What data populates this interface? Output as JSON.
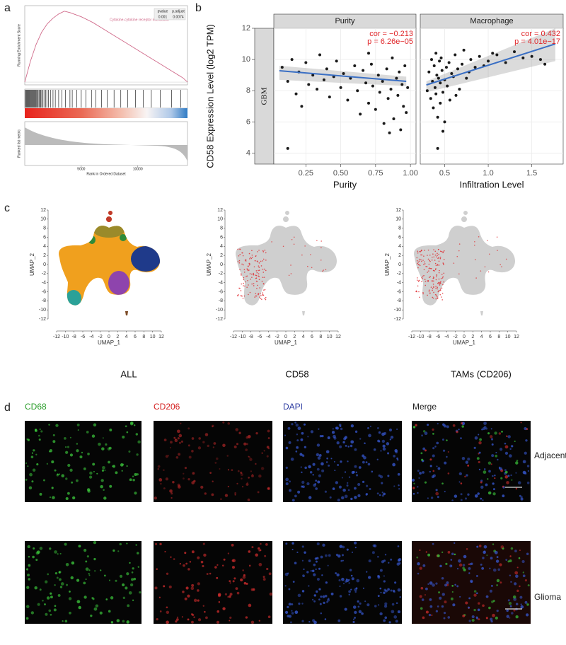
{
  "panel_a": {
    "label": "a",
    "legend": "Cytokine-cytokine receptor interaction",
    "stats_header": [
      "pvalue",
      "p.adjust"
    ],
    "stats": [
      "0.001",
      "0.0074"
    ],
    "y_label": "Running Enrichment Score",
    "y2_label": "Ranked list metric",
    "x_label": "Rank in Ordered Dataset",
    "xlim": [
      0,
      14400
    ],
    "xticks": [
      5000,
      10000
    ],
    "ylim": [
      -0.02,
      0.55
    ],
    "es_curve": {
      "x": [
        0,
        500,
        1000,
        1500,
        2000,
        2500,
        3000,
        3500,
        4000,
        5000,
        6000,
        7000,
        8000,
        9000,
        10000,
        11000,
        12000,
        13000,
        14000,
        14400
      ],
      "y": [
        0,
        0.15,
        0.27,
        0.36,
        0.42,
        0.46,
        0.49,
        0.51,
        0.5,
        0.47,
        0.43,
        0.38,
        0.33,
        0.28,
        0.23,
        0.18,
        0.13,
        0.08,
        0.03,
        0
      ]
    },
    "hits": [
      50,
      120,
      180,
      240,
      300,
      360,
      420,
      470,
      530,
      600,
      650,
      720,
      780,
      850,
      900,
      980,
      1050,
      1100,
      1180,
      1260,
      1330,
      1400,
      1500,
      1600,
      1700,
      1850,
      1950,
      2100,
      2300,
      2500,
      2700,
      3000,
      3300,
      3600,
      4000,
      4200,
      4600,
      5000,
      5400,
      5900,
      6300,
      6800,
      7300,
      7900,
      8500,
      9100,
      9800,
      10500,
      11200,
      12000,
      13000,
      13800
    ]
  },
  "panel_b": {
    "label": "b",
    "type": "scatter",
    "y_label": "CD58 Expression Level (log2 TPM)",
    "strip": "GBM",
    "ylim": [
      3.3,
      12
    ],
    "yticks": [
      4,
      6,
      8,
      10,
      12
    ],
    "facets": [
      {
        "title": "Purity",
        "x_label": "Purity",
        "xlim": [
          0.02,
          1.04
        ],
        "xticks": [
          0.25,
          {
            "value": 0.5,
            "label": "0.50"
          },
          0.75,
          {
            "value": 1,
            "label": "1.00"
          }
        ],
        "cor": "cor = −0.213",
        "p": "p = 6.26e−05",
        "x": [
          0.08,
          0.12,
          0.15,
          0.18,
          0.2,
          0.22,
          0.25,
          0.27,
          0.3,
          0.33,
          0.35,
          0.38,
          0.4,
          0.42,
          0.45,
          0.47,
          0.5,
          0.52,
          0.55,
          0.57,
          0.6,
          0.62,
          0.64,
          0.66,
          0.68,
          0.7,
          0.72,
          0.73,
          0.75,
          0.77,
          0.78,
          0.8,
          0.81,
          0.83,
          0.84,
          0.86,
          0.87,
          0.88,
          0.9,
          0.91,
          0.92,
          0.93,
          0.94,
          0.95,
          0.96,
          0.97,
          0.98,
          0.12,
          0.7,
          0.85
        ],
        "y": [
          9.5,
          8.6,
          10.0,
          7.8,
          9.2,
          7.0,
          9.8,
          8.4,
          9.0,
          8.1,
          10.3,
          8.7,
          9.4,
          7.6,
          8.9,
          9.9,
          8.2,
          9.1,
          7.4,
          8.8,
          9.6,
          8.0,
          6.5,
          9.3,
          8.5,
          7.2,
          9.7,
          8.3,
          6.8,
          9.0,
          7.9,
          8.6,
          5.9,
          9.4,
          7.5,
          8.1,
          10.1,
          6.2,
          8.8,
          7.7,
          9.2,
          5.5,
          8.4,
          7.0,
          9.6,
          6.6,
          8.2,
          4.3,
          10.4,
          5.3
        ],
        "fit": {
          "x": [
            0.06,
            0.97
          ],
          "y": [
            9.28,
            8.6
          ],
          "lower": [
            8.7,
            8.3
          ],
          "upper": [
            9.6,
            8.9
          ]
        }
      },
      {
        "title": "Macrophage",
        "x_label": "Infiltration Level",
        "xlim": [
          0.22,
          1.86
        ],
        "xticks": [
          0.5,
          {
            "value": 1,
            "label": "1.0"
          },
          1.5
        ],
        "cor": "cor = 0.432",
        "p": "p = 4.01e−17",
        "x": [
          0.3,
          0.32,
          0.34,
          0.35,
          0.36,
          0.37,
          0.38,
          0.39,
          0.4,
          0.4,
          0.41,
          0.42,
          0.43,
          0.44,
          0.45,
          0.45,
          0.46,
          0.47,
          0.48,
          0.5,
          0.5,
          0.52,
          0.53,
          0.55,
          0.56,
          0.58,
          0.6,
          0.62,
          0.63,
          0.65,
          0.67,
          0.7,
          0.72,
          0.75,
          0.78,
          0.8,
          0.85,
          0.9,
          0.95,
          1.0,
          1.05,
          1.1,
          1.2,
          1.3,
          1.4,
          1.5,
          1.6,
          1.65,
          0.42,
          0.48
        ],
        "y": [
          8.0,
          9.2,
          7.5,
          10.0,
          8.6,
          6.9,
          9.6,
          8.2,
          7.8,
          10.4,
          9.0,
          6.3,
          8.8,
          9.9,
          7.2,
          8.5,
          10.1,
          9.3,
          7.9,
          8.7,
          6.0,
          9.5,
          8.3,
          9.8,
          7.4,
          9.1,
          8.9,
          10.3,
          7.7,
          9.4,
          8.1,
          9.7,
          10.6,
          8.8,
          9.2,
          10.0,
          9.5,
          10.2,
          9.6,
          9.9,
          10.4,
          10.3,
          9.8,
          10.5,
          10.1,
          10.2,
          10.0,
          9.7,
          4.3,
          5.4
        ],
        "fit": {
          "x": [
            0.29,
            1.77
          ],
          "y": [
            8.37,
            11.0
          ],
          "lower": [
            7.9,
            9.9
          ],
          "upper": [
            8.6,
            12.0
          ]
        }
      }
    ]
  },
  "panel_c": {
    "label": "c",
    "x_label": "UMAP_1",
    "y_label": "UMAP_2",
    "xlim": [
      -12,
      12
    ],
    "ylim": [
      -12,
      12
    ],
    "xticks": [
      -12,
      -10,
      -8,
      -6,
      -4,
      -2,
      0,
      2,
      4,
      6,
      8,
      10,
      12
    ],
    "yticks": [
      12,
      10,
      8,
      6,
      4,
      2,
      0,
      -2,
      -4,
      -6,
      -8,
      -10,
      -12
    ],
    "titles": [
      "ALL",
      "CD58",
      "TAMs (CD206)"
    ]
  },
  "panel_d": {
    "label": "d",
    "channels": [
      "CD68",
      "CD206",
      "DAPI",
      "Merge"
    ],
    "rows": [
      "Adjacent",
      "Glioma"
    ]
  }
}
